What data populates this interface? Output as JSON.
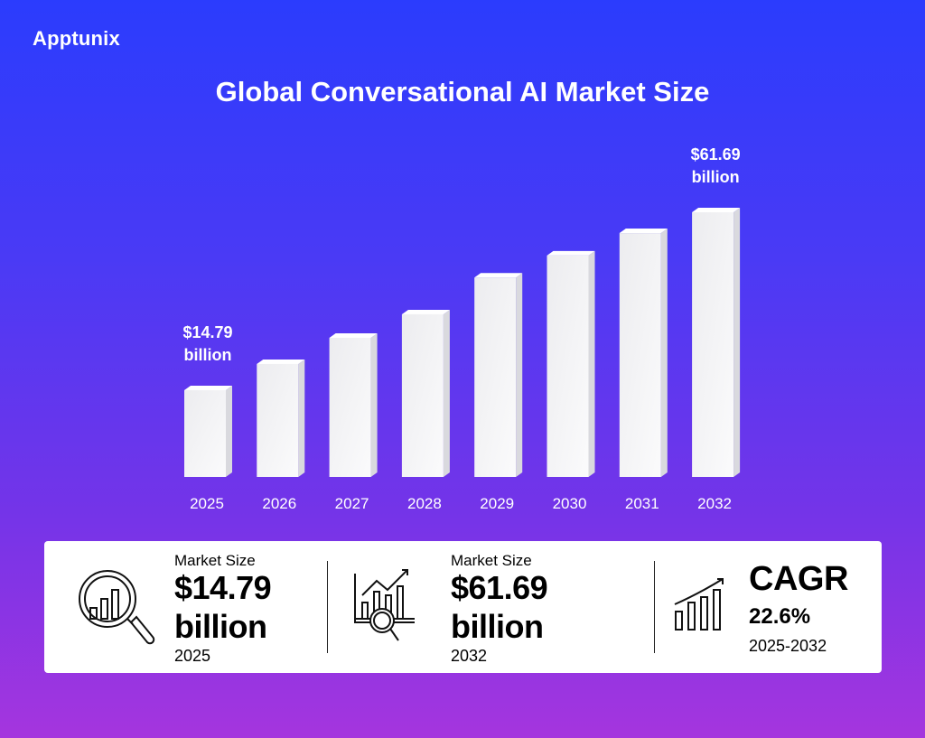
{
  "brand": {
    "logo_text": "Apptunix"
  },
  "colors": {
    "background_top": "#2b3cfd",
    "background_bottom": "#a535de",
    "bar": "#f4f4f6",
    "panel": "#ffffff"
  },
  "chart_data": {
    "type": "bar",
    "title": "Global Conversational AI Market Size",
    "categories": [
      "2025",
      "2026",
      "2027",
      "2028",
      "2029",
      "2030",
      "2031",
      "2032"
    ],
    "values": [
      14.79,
      21.7,
      28.6,
      34.8,
      44.5,
      50.3,
      56.2,
      61.69
    ],
    "unit": "billion USD",
    "annotations": [
      {
        "category": "2025",
        "line1": "$14.79",
        "line2": "billion"
      },
      {
        "category": "2032",
        "line1": "$61.69",
        "line2": "billion"
      }
    ],
    "grid": false,
    "legend": "none"
  },
  "summary": {
    "start": {
      "label": "Market Size",
      "value": "$14.79",
      "unit": "billion",
      "year": "2025",
      "icon": "magnifier-chart-icon"
    },
    "end": {
      "label": "Market Size",
      "value": "$61.69",
      "unit": "billion",
      "year": "2032",
      "icon": "growth-analysis-icon"
    },
    "cagr": {
      "label": "CAGR",
      "value": "22.6%",
      "range": "2025-2032",
      "icon": "rising-bars-icon"
    }
  }
}
